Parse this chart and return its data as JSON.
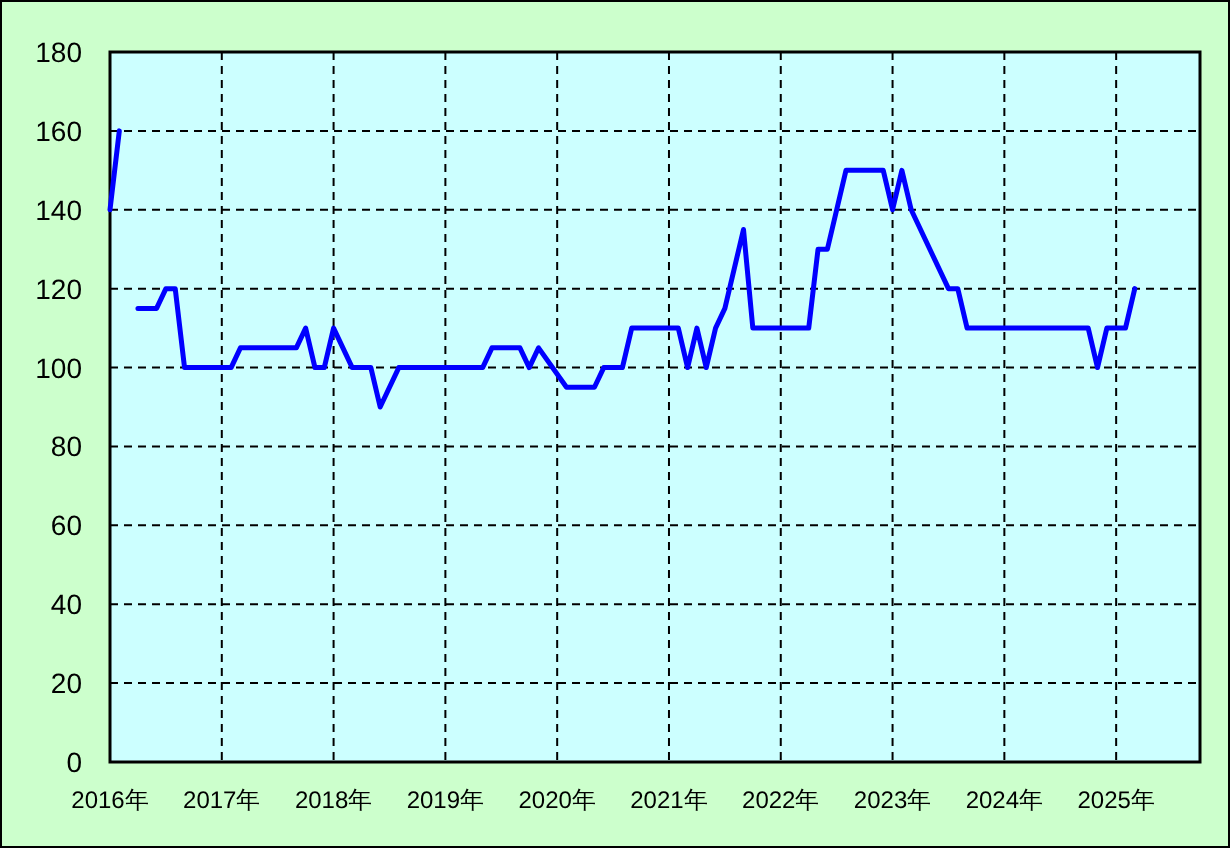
{
  "chart_data": {
    "type": "line",
    "x": [
      "2016-01",
      "2016-02",
      "2016-03",
      "2016-04",
      "2016-06",
      "2016-07",
      "2016-08",
      "2016-09",
      "2017-02",
      "2017-03",
      "2017-09",
      "2017-10",
      "2017-11",
      "2017-12",
      "2018-01",
      "2018-03",
      "2018-05",
      "2018-06",
      "2018-08",
      "2019-05",
      "2019-06",
      "2019-09",
      "2019-10",
      "2019-11",
      "2020-02",
      "2020-05",
      "2020-06",
      "2020-08",
      "2020-09",
      "2021-02",
      "2021-03",
      "2021-04",
      "2021-05",
      "2021-06",
      "2021-07",
      "2021-09",
      "2021-10",
      "2022-04",
      "2022-05",
      "2022-06",
      "2022-08",
      "2022-12",
      "2023-01",
      "2023-02",
      "2023-03",
      "2023-07",
      "2023-08",
      "2023-09",
      "2024-10",
      "2024-11",
      "2024-12",
      "2025-02",
      "2025-03"
    ],
    "series": [
      {
        "color": "#0000ff",
        "values": [
          140,
          160,
          null,
          115,
          115,
          120,
          120,
          100,
          100,
          105,
          105,
          110,
          100,
          100,
          110,
          100,
          100,
          90,
          100,
          100,
          105,
          105,
          100,
          105,
          95,
          95,
          100,
          100,
          110,
          110,
          100,
          110,
          100,
          110,
          115,
          135,
          110,
          110,
          130,
          130,
          150,
          150,
          140,
          150,
          140,
          120,
          120,
          110,
          110,
          100,
          110,
          110,
          120
        ]
      }
    ],
    "xlim": [
      "2016-01",
      "2025-10"
    ],
    "xticks": [
      {
        "value": "2016-01",
        "label": "2016年"
      },
      {
        "value": "2017-01",
        "label": "2017年"
      },
      {
        "value": "2018-01",
        "label": "2018年"
      },
      {
        "value": "2019-01",
        "label": "2019年"
      },
      {
        "value": "2020-01",
        "label": "2020年"
      },
      {
        "value": "2021-01",
        "label": "2021年"
      },
      {
        "value": "2022-01",
        "label": "2022年"
      },
      {
        "value": "2023-01",
        "label": "2023年"
      },
      {
        "value": "2024-01",
        "label": "2024年"
      },
      {
        "value": "2025-01",
        "label": "2025年"
      }
    ],
    "ylim": [
      0,
      180
    ],
    "yticks": [
      0,
      20,
      40,
      60,
      80,
      100,
      120,
      140,
      160,
      180
    ],
    "grid": true,
    "marker": "none",
    "line_style": "solid"
  }
}
